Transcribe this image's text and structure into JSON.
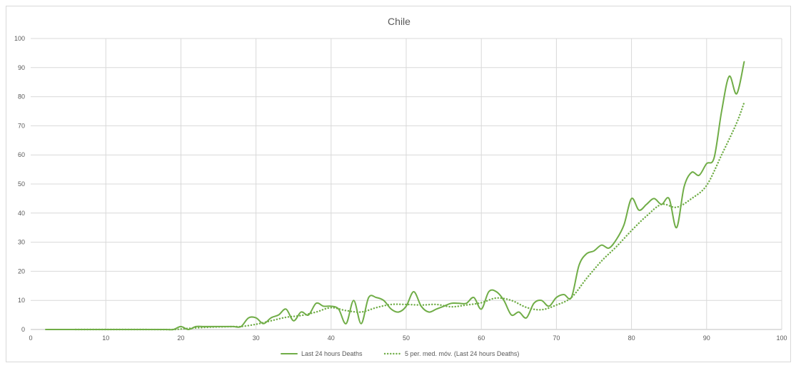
{
  "chart_data": {
    "type": "line",
    "title": "Chile",
    "xlabel": "",
    "ylabel": "",
    "xlim": [
      0,
      100
    ],
    "ylim": [
      0,
      100
    ],
    "x_ticks": [
      0,
      10,
      20,
      30,
      40,
      50,
      60,
      70,
      80,
      90,
      100
    ],
    "y_ticks": [
      0,
      10,
      20,
      30,
      40,
      50,
      60,
      70,
      80,
      90,
      100
    ],
    "grid": true,
    "legend_position": "bottom",
    "colors": {
      "series": "#70ad47",
      "grid": "#d9d9d9",
      "axis": "#bfbfbf",
      "text": "#595959"
    },
    "series": [
      {
        "name": "Last 24 hours Deaths",
        "style": "solid",
        "points": [
          [
            2,
            0
          ],
          [
            3,
            0
          ],
          [
            4,
            0
          ],
          [
            5,
            0
          ],
          [
            6,
            0
          ],
          [
            7,
            0
          ],
          [
            8,
            0
          ],
          [
            9,
            0
          ],
          [
            10,
            0
          ],
          [
            11,
            0
          ],
          [
            12,
            0
          ],
          [
            13,
            0
          ],
          [
            14,
            0
          ],
          [
            15,
            0
          ],
          [
            16,
            0
          ],
          [
            17,
            0
          ],
          [
            18,
            0
          ],
          [
            19,
            0
          ],
          [
            20,
            1
          ],
          [
            21,
            0
          ],
          [
            22,
            1
          ],
          [
            23,
            1
          ],
          [
            24,
            1
          ],
          [
            25,
            1
          ],
          [
            26,
            1
          ],
          [
            27,
            1
          ],
          [
            28,
            1
          ],
          [
            29,
            4
          ],
          [
            30,
            4
          ],
          [
            31,
            2
          ],
          [
            32,
            4
          ],
          [
            33,
            5
          ],
          [
            34,
            7
          ],
          [
            35,
            3
          ],
          [
            36,
            6
          ],
          [
            37,
            5
          ],
          [
            38,
            9
          ],
          [
            39,
            8
          ],
          [
            40,
            8
          ],
          [
            41,
            7
          ],
          [
            42,
            2
          ],
          [
            43,
            10
          ],
          [
            44,
            2
          ],
          [
            45,
            11
          ],
          [
            46,
            11
          ],
          [
            47,
            10
          ],
          [
            48,
            7
          ],
          [
            49,
            6
          ],
          [
            50,
            8
          ],
          [
            51,
            13
          ],
          [
            52,
            8
          ],
          [
            53,
            6
          ],
          [
            54,
            7
          ],
          [
            55,
            8
          ],
          [
            56,
            9
          ],
          [
            57,
            9
          ],
          [
            58,
            9
          ],
          [
            59,
            11
          ],
          [
            60,
            7
          ],
          [
            61,
            13
          ],
          [
            62,
            13
          ],
          [
            63,
            10
          ],
          [
            64,
            5
          ],
          [
            65,
            6
          ],
          [
            66,
            4
          ],
          [
            67,
            9
          ],
          [
            68,
            10
          ],
          [
            69,
            8
          ],
          [
            70,
            11
          ],
          [
            71,
            12
          ],
          [
            72,
            11
          ],
          [
            73,
            22
          ],
          [
            74,
            26
          ],
          [
            75,
            27
          ],
          [
            76,
            29
          ],
          [
            77,
            28
          ],
          [
            78,
            31
          ],
          [
            79,
            36
          ],
          [
            80,
            45
          ],
          [
            81,
            41
          ],
          [
            82,
            43
          ],
          [
            83,
            45
          ],
          [
            84,
            43
          ],
          [
            85,
            45
          ],
          [
            86,
            35
          ],
          [
            87,
            49
          ],
          [
            88,
            54
          ],
          [
            89,
            53
          ],
          [
            90,
            57
          ],
          [
            91,
            59
          ],
          [
            92,
            75
          ],
          [
            93,
            87
          ],
          [
            94,
            81
          ],
          [
            95,
            92
          ]
        ]
      },
      {
        "name": "5 per. med. móv. (Last 24 hours Deaths)",
        "style": "dotted",
        "points": [
          [
            6,
            0
          ],
          [
            10,
            0
          ],
          [
            15,
            0
          ],
          [
            19,
            0
          ],
          [
            21,
            0.4
          ],
          [
            24,
            0.8
          ],
          [
            27,
            1
          ],
          [
            28,
            1
          ],
          [
            30,
            1.8
          ],
          [
            32,
            3
          ],
          [
            34,
            4.2
          ],
          [
            36,
            4.8
          ],
          [
            38,
            6
          ],
          [
            40,
            7.5
          ],
          [
            42,
            6.5
          ],
          [
            44,
            6
          ],
          [
            46,
            7.5
          ],
          [
            48,
            8.6
          ],
          [
            50,
            8.6
          ],
          [
            52,
            8.4
          ],
          [
            54,
            8.6
          ],
          [
            56,
            7.8
          ],
          [
            58,
            8.4
          ],
          [
            60,
            9.2
          ],
          [
            62,
            10.8
          ],
          [
            64,
            10
          ],
          [
            66,
            7.6
          ],
          [
            68,
            6.8
          ],
          [
            70,
            8.4
          ],
          [
            72,
            11
          ],
          [
            74,
            17.5
          ],
          [
            76,
            23.5
          ],
          [
            78,
            28.5
          ],
          [
            80,
            34
          ],
          [
            82,
            39
          ],
          [
            84,
            43
          ],
          [
            86,
            42
          ],
          [
            88,
            45
          ],
          [
            90,
            49.5
          ],
          [
            92,
            60
          ],
          [
            94,
            71
          ],
          [
            95,
            78
          ]
        ]
      }
    ]
  }
}
